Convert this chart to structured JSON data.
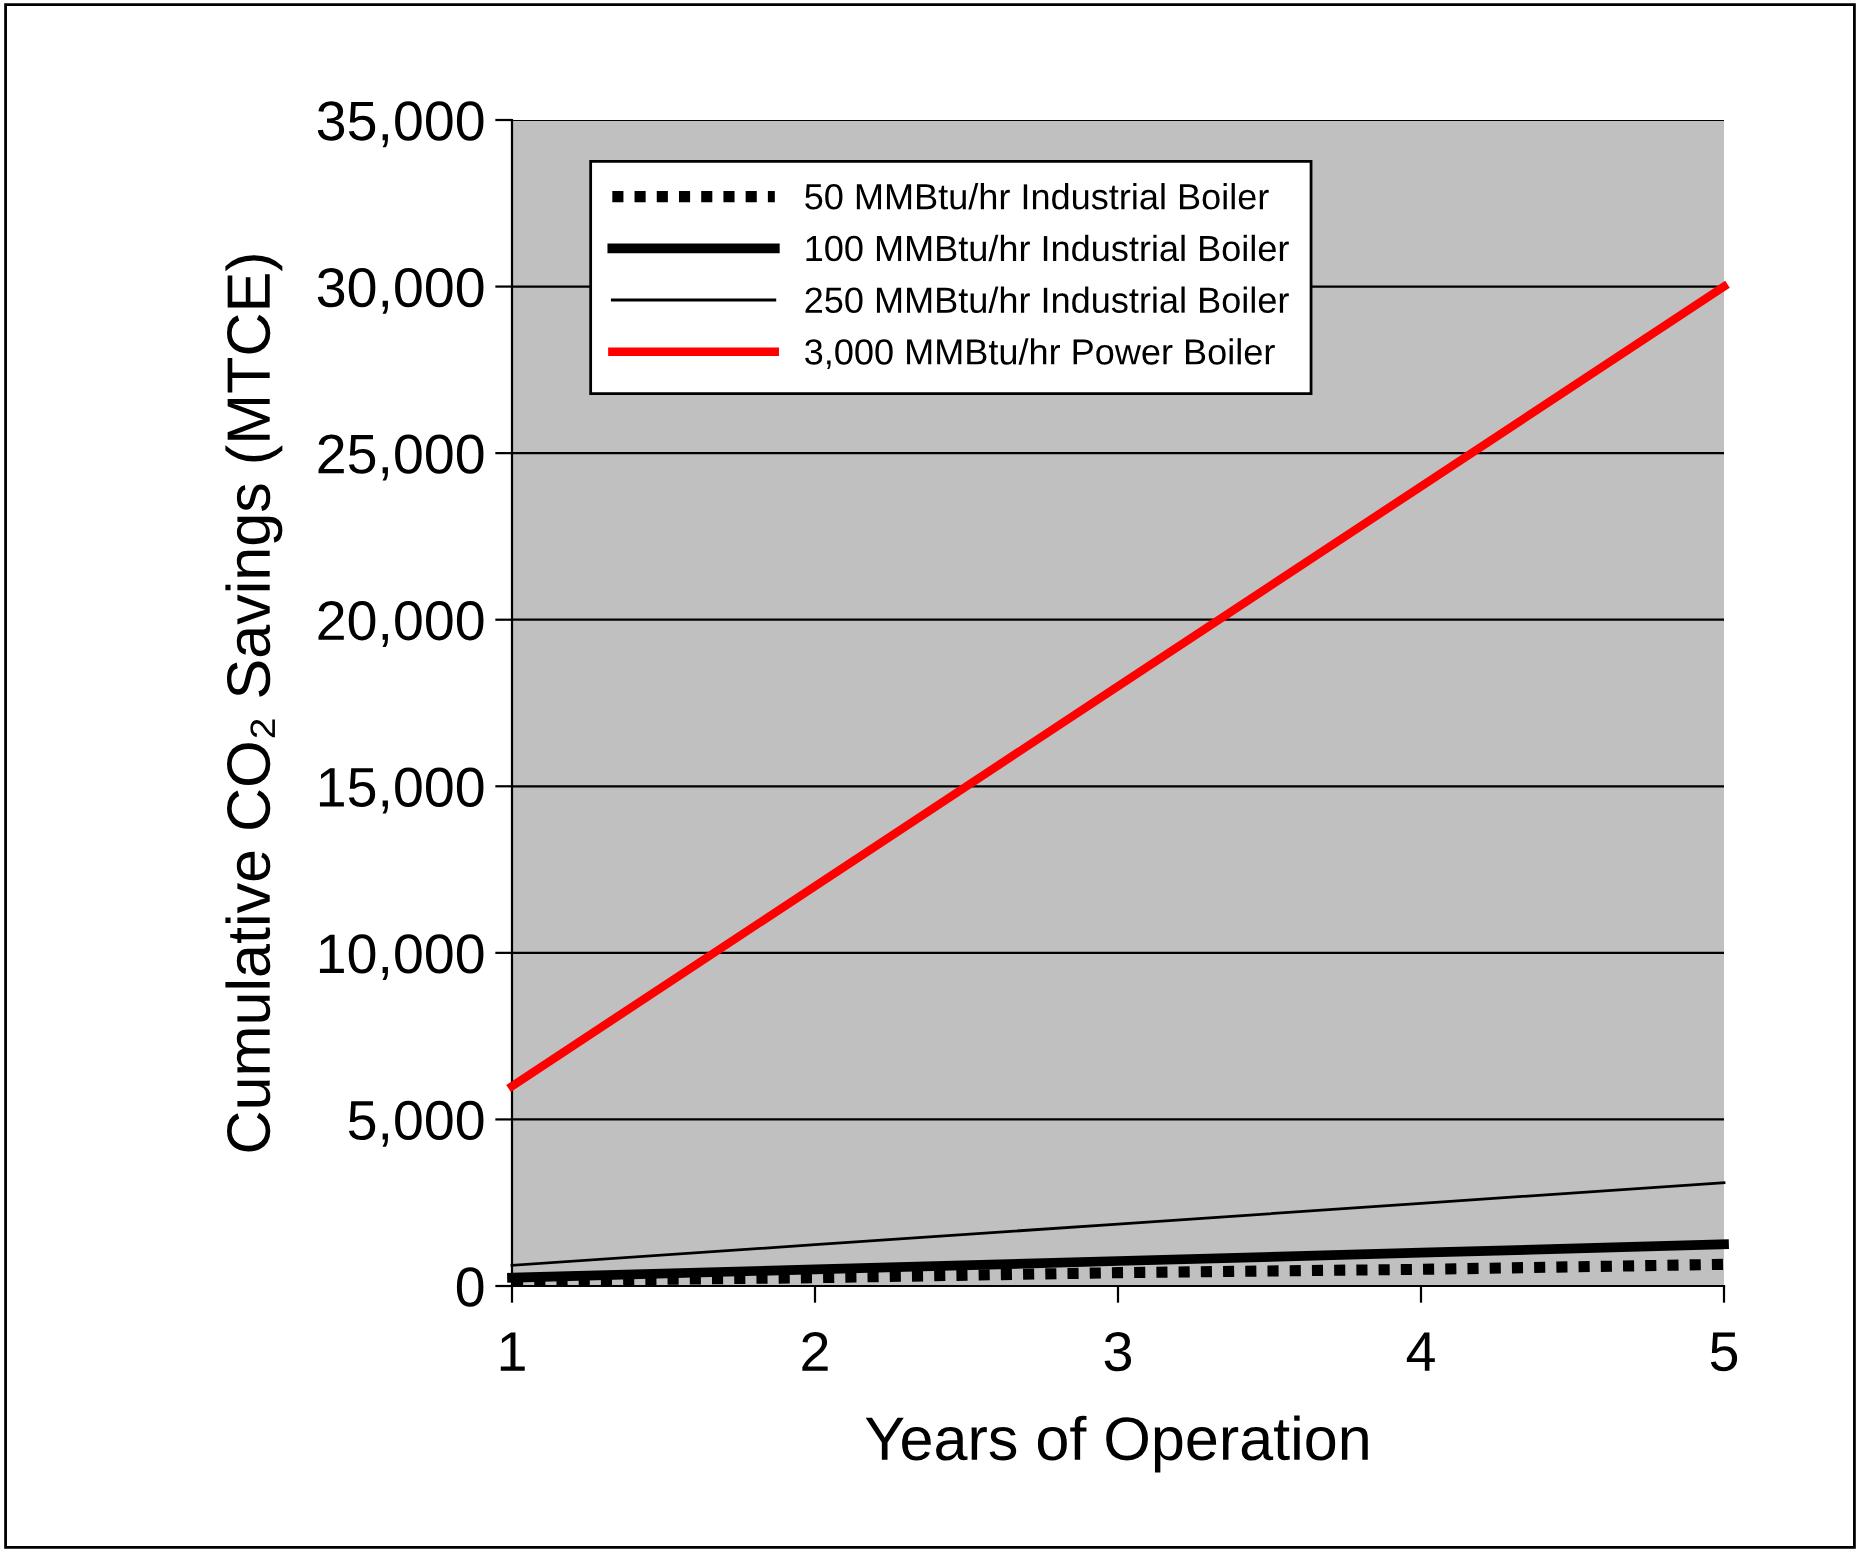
{
  "chart_data": {
    "type": "line",
    "xlabel": "Years of Operation",
    "ylabel": "Cumulative CO₂ Savings (MTCE)",
    "x": [
      1,
      2,
      3,
      4,
      5
    ],
    "series": [
      {
        "name": "50 MMBtu/hr Industrial Boiler",
        "color": "#000000",
        "values": [
          150,
          250,
          400,
          500,
          650
        ],
        "line_style": "dotted"
      },
      {
        "name": "100 MMBtu/hr Industrial Boiler",
        "color": "#000000",
        "values": [
          250,
          500,
          750,
          1000,
          1250
        ],
        "line_style": "solid"
      },
      {
        "name": "250 MMBtu/hr Industrial Boiler",
        "color": "#000000",
        "values": [
          620,
          1240,
          1860,
          2480,
          3100
        ],
        "line_style": "solid"
      },
      {
        "name": "3,000 MMBtu/hr Power Boiler",
        "color": "#ff0000",
        "values": [
          6000,
          12000,
          18000,
          24000,
          30000
        ],
        "line_style": "solid"
      }
    ],
    "xlim": [
      1,
      5
    ],
    "xticks": [
      1,
      2,
      3,
      4,
      5
    ],
    "ylim": [
      0,
      35000
    ],
    "yticks": [
      0,
      {
        "value": 5000,
        "label": "5,000"
      },
      {
        "value": 10000,
        "label": "10,000"
      },
      {
        "value": 15000,
        "label": "15,000"
      },
      {
        "value": 20000,
        "label": "20,000"
      },
      {
        "value": 25000,
        "label": "25,000"
      },
      {
        "value": 30000,
        "label": "30,000"
      },
      {
        "value": 35000,
        "label": "35,000"
      }
    ],
    "grid": "y",
    "legend": "top left",
    "marker": "none"
  }
}
